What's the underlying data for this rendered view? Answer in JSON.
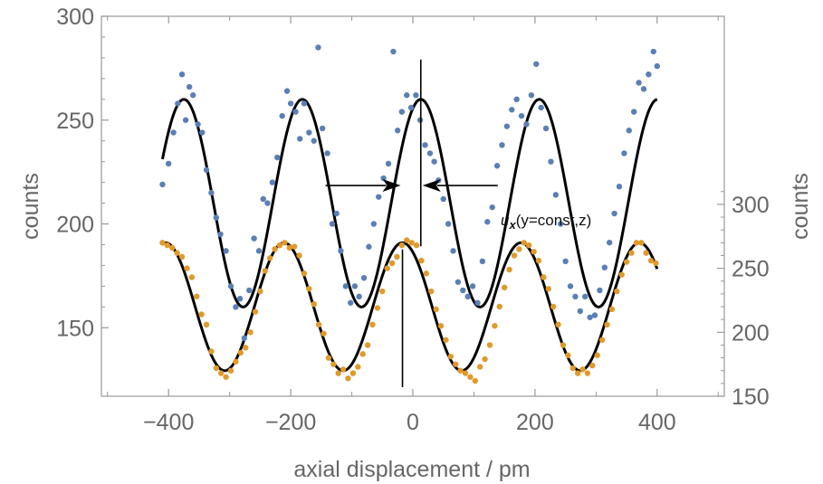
{
  "chart_data": {
    "type": "scatter",
    "xlabel": "axial displacement / pm",
    "xlim": [
      -510,
      510
    ],
    "x_ticks": [
      "−400",
      "−200",
      "0",
      "200",
      "400"
    ],
    "x_tick_values": [
      -400,
      -200,
      0,
      200,
      400
    ],
    "left_axis": {
      "label": "counts",
      "ylim": [
        117,
        300
      ],
      "ticks": [
        "150",
        "200",
        "250",
        "300"
      ],
      "tick_values": [
        150,
        200,
        250,
        300
      ]
    },
    "right_axis": {
      "label": "counts",
      "ylim": [
        150,
        447
      ],
      "ticks": [
        "150",
        "200",
        "250",
        "300"
      ],
      "tick_values": [
        150,
        200,
        250,
        300
      ]
    },
    "series": [
      {
        "axis": "left",
        "color": "#5b7fb5",
        "fit": {
          "offset": 210,
          "amplitude": 50,
          "period": 194,
          "peak_x": 13,
          "x_range": [
            -410,
            400
          ],
          "color": "#000000"
        },
        "x": [
          -410,
          -400,
          -392,
          -385,
          -378,
          -372,
          -366,
          -360,
          -352,
          -345,
          -338,
          -330,
          -322,
          -315,
          -306,
          -298,
          -290,
          -283,
          -276,
          -268,
          -260,
          -252,
          -245,
          -238,
          -230,
          -222,
          -214,
          -206,
          -200,
          -192,
          -185,
          -178,
          -170,
          -162,
          -155,
          -148,
          -140,
          -132,
          -125,
          -118,
          -110,
          -102,
          -95,
          -88,
          -80,
          -72,
          -64,
          -56,
          -48,
          -40,
          -32,
          -25,
          -18,
          -10,
          -3,
          5,
          12,
          20,
          28,
          35,
          42,
          50,
          58,
          66,
          74,
          82,
          90,
          98,
          106,
          114,
          122,
          130,
          138,
          146,
          154,
          162,
          170,
          178,
          186,
          194,
          202,
          210,
          218,
          226,
          234,
          242,
          250,
          258,
          266,
          274,
          282,
          290,
          298,
          306,
          314,
          322,
          330,
          338,
          346,
          354,
          362,
          370,
          378,
          386,
          394,
          400
        ],
        "values": [
          219,
          229,
          244,
          258,
          272,
          250,
          266,
          262,
          248,
          244,
          226,
          215,
          203,
          195,
          187,
          170,
          160,
          164,
          145,
          168,
          193,
          187,
          212,
          210,
          220,
          232,
          252,
          264,
          258,
          254,
          241,
          258,
          244,
          240,
          285,
          246,
          234,
          200,
          205,
          187,
          170,
          162,
          170,
          165,
          174,
          189,
          200,
          213,
          222,
          229,
          283,
          245,
          254,
          262,
          256,
          262,
          250,
          238,
          234,
          230,
          221,
          212,
          200,
          187,
          172,
          168,
          165,
          170,
          162,
          182,
          201,
          208,
          228,
          238,
          247,
          255,
          260,
          252,
          248,
          262,
          277,
          256,
          246,
          230,
          214,
          200,
          182,
          170,
          165,
          158,
          165,
          155,
          156,
          168,
          179,
          191,
          205,
          218,
          234,
          245,
          254,
          268,
          265,
          272,
          283,
          276
        ]
      },
      {
        "axis": "right",
        "color": "#e09a2c",
        "fit": {
          "offset": 220,
          "amplitude": 50,
          "period": 194,
          "peak_x": -17,
          "x_range": [
            -410,
            400
          ],
          "color": "#000000"
        },
        "x": [
          -410,
          -402,
          -394,
          -386,
          -378,
          -370,
          -362,
          -354,
          -346,
          -338,
          -330,
          -322,
          -314,
          -306,
          -298,
          -290,
          -282,
          -274,
          -266,
          -258,
          -250,
          -242,
          -234,
          -226,
          -218,
          -210,
          -202,
          -194,
          -186,
          -178,
          -170,
          -162,
          -154,
          -146,
          -138,
          -130,
          -122,
          -114,
          -106,
          -98,
          -90,
          -82,
          -74,
          -66,
          -58,
          -50,
          -42,
          -34,
          -26,
          -18,
          -10,
          -2,
          6,
          14,
          22,
          30,
          38,
          46,
          54,
          62,
          70,
          78,
          86,
          94,
          102,
          110,
          118,
          126,
          134,
          142,
          150,
          158,
          166,
          174,
          182,
          190,
          198,
          206,
          214,
          222,
          230,
          238,
          246,
          254,
          262,
          270,
          278,
          286,
          294,
          302,
          310,
          318,
          326,
          334,
          342,
          350,
          358,
          366,
          374,
          382,
          390,
          398
        ],
        "values": [
          270,
          268,
          266,
          262,
          259,
          250,
          243,
          228,
          214,
          206,
          185,
          172,
          168,
          165,
          170,
          177,
          184,
          188,
          200,
          216,
          232,
          248,
          258,
          265,
          268,
          270,
          266,
          267,
          260,
          246,
          234,
          222,
          206,
          199,
          180,
          175,
          168,
          171,
          164,
          168,
          173,
          183,
          190,
          206,
          219,
          232,
          250,
          254,
          259,
          268,
          272,
          270,
          268,
          256,
          246,
          232,
          218,
          205,
          194,
          181,
          175,
          170,
          168,
          165,
          162,
          173,
          179,
          190,
          205,
          220,
          235,
          249,
          260,
          265,
          270,
          268,
          263,
          256,
          243,
          234,
          220,
          206,
          190,
          182,
          172,
          168,
          171,
          168,
          174,
          182,
          194,
          206,
          218,
          232,
          245,
          255,
          262,
          270,
          270,
          262,
          256,
          254
        ]
      }
    ],
    "annotation": {
      "symbol": "u",
      "subscript": "x",
      "text": "(y=const,z)"
    }
  }
}
